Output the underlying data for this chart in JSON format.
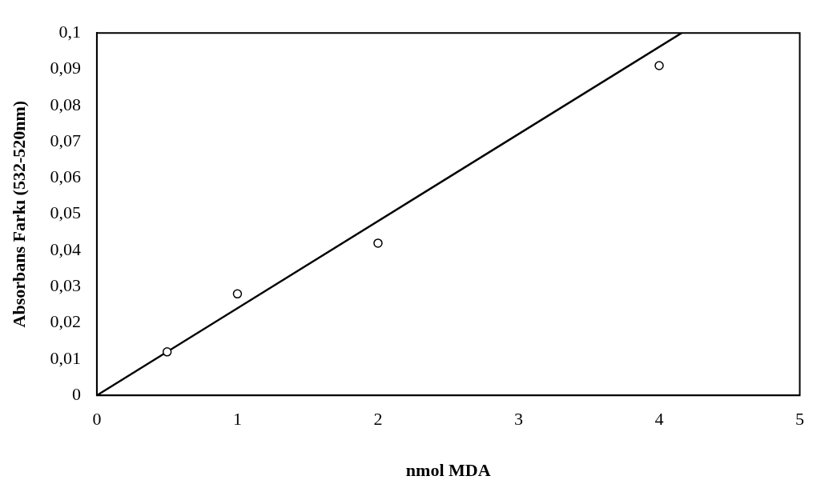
{
  "chart_data": {
    "type": "scatter",
    "xlabel": "nmol MDA",
    "ylabel": "Absorbans Farkı (532-520nm)",
    "series": [
      {
        "x": [
          0.5,
          1,
          2,
          4
        ],
        "values": [
          0.012,
          0.028,
          0.042,
          0.091
        ],
        "color": "#000000",
        "marker": "circle"
      },
      {
        "type": "line",
        "x": [
          0,
          4.16
        ],
        "values": [
          0,
          0.1
        ],
        "color": "#000000",
        "marker": "none",
        "line_style": "solid"
      }
    ],
    "xlim": [
      0,
      5
    ],
    "xticks": [
      0,
      1,
      2,
      3,
      4,
      5
    ],
    "ylim": [
      0,
      0.1
    ],
    "yticks": [
      {
        "value": 0,
        "label": "0"
      },
      {
        "value": 0.01,
        "label": "0,01"
      },
      {
        "value": 0.02,
        "label": "0,02"
      },
      {
        "value": 0.03,
        "label": "0,03"
      },
      {
        "value": 0.04,
        "label": "0,04"
      },
      {
        "value": 0.05,
        "label": "0,05"
      },
      {
        "value": 0.06,
        "label": "0,06"
      },
      {
        "value": 0.07,
        "label": "0,07"
      },
      {
        "value": 0.08,
        "label": "0,08"
      },
      {
        "value": 0.09,
        "label": "0,09"
      },
      {
        "value": 0.1,
        "label": "0,1"
      }
    ],
    "grid": false,
    "legend": false
  }
}
